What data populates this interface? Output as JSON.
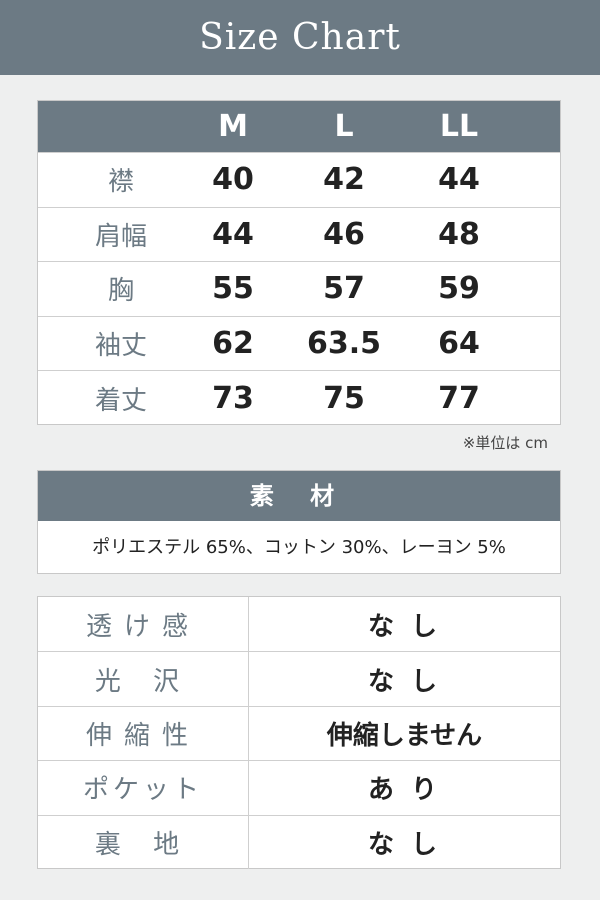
{
  "title": "Size Chart",
  "size_table": {
    "headers": [
      "",
      "M",
      "L",
      "LL"
    ],
    "rows": [
      {
        "label": "襟",
        "values": [
          "40",
          "42",
          "44"
        ]
      },
      {
        "label": "肩幅",
        "values": [
          "44",
          "46",
          "48"
        ]
      },
      {
        "label": "胸",
        "values": [
          "55",
          "57",
          "59"
        ]
      },
      {
        "label": "袖丈",
        "values": [
          "62",
          "63.5",
          "64"
        ]
      },
      {
        "label": "着丈",
        "values": [
          "73",
          "75",
          "77"
        ]
      }
    ],
    "unit_note": "※単位は cm"
  },
  "material": {
    "title": "素 材",
    "text": "ポリエステル 65%、コットン 30%、レーヨン 5%"
  },
  "properties": [
    {
      "label": "透け感",
      "value": "な し"
    },
    {
      "label": "光 沢",
      "value": "な し"
    },
    {
      "label": "伸縮性",
      "value": "伸縮しません"
    },
    {
      "label": "ポケット",
      "value": "あ り"
    },
    {
      "label": "裏 地",
      "value": "な し"
    }
  ],
  "colors": {
    "header": "#6c7a84",
    "background": "#eeefef"
  }
}
